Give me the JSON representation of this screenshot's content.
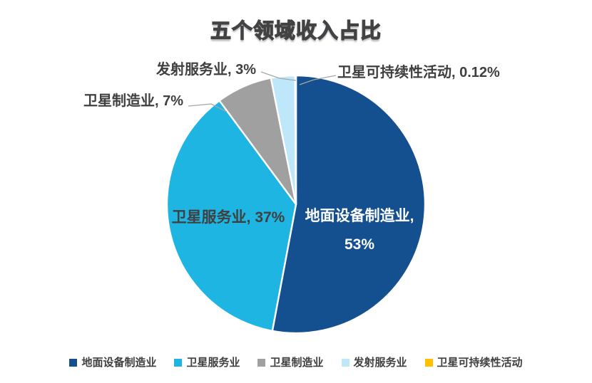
{
  "title": "五个领域收入占比",
  "chart_data": {
    "type": "pie",
    "title": "五个领域收入占比",
    "unit": "%",
    "start_angle_deg": 0,
    "direction": "clockwise",
    "legend_position": "bottom",
    "series": [
      {
        "key": "ground-equipment-manufacturing",
        "name": "地面设备制造业",
        "value": 53,
        "percent_label": "53%",
        "color": "#14508F",
        "label_placement": "inside"
      },
      {
        "key": "satellite-services",
        "name": "卫星服务业",
        "value": 37,
        "percent_label": "37%",
        "color": "#1FB5E3",
        "label_placement": "inside"
      },
      {
        "key": "satellite-manufacturing",
        "name": "卫星制造业",
        "value": 7,
        "percent_label": "7%",
        "color": "#A0A0A0",
        "label_placement": "outside"
      },
      {
        "key": "launch-services",
        "name": "发射服务业",
        "value": 3,
        "percent_label": "3%",
        "color": "#BEE8FA",
        "label_placement": "outside"
      },
      {
        "key": "satellite-sustainability",
        "name": "卫星可持续性活动",
        "value": 0.12,
        "percent_label": "0.12%",
        "color": "#FFC000",
        "label_placement": "outside"
      }
    ]
  },
  "labels": {
    "ground_line1": "地面设备制造业,",
    "ground_line2": "53%",
    "satellite_services": "卫星服务业, 37%",
    "satellite_manufacturing": "卫星制造业, 7%",
    "launch_services": "发射服务业, 3%",
    "sustainability": "卫星可持续性活动, 0.12%"
  },
  "legend": {
    "items": [
      {
        "label": "地面设备制造业",
        "color": "#14508F"
      },
      {
        "label": "卫星服务业",
        "color": "#1FB5E3"
      },
      {
        "label": "卫星制造业",
        "color": "#A0A0A0"
      },
      {
        "label": "发射服务业",
        "color": "#BEE8FA"
      },
      {
        "label": "卫星可持续性活动",
        "color": "#FFC000"
      }
    ]
  },
  "colors": {
    "background": "#FFFFFF",
    "title_fill": "#1B5CAD",
    "title_outline": "#424242",
    "outside_label_text": "#3F3F3F",
    "inside_label_text": "#FFFFFF",
    "leader_line": "#A6A6A6",
    "slice_gap_stroke": "#FFFFFF"
  }
}
